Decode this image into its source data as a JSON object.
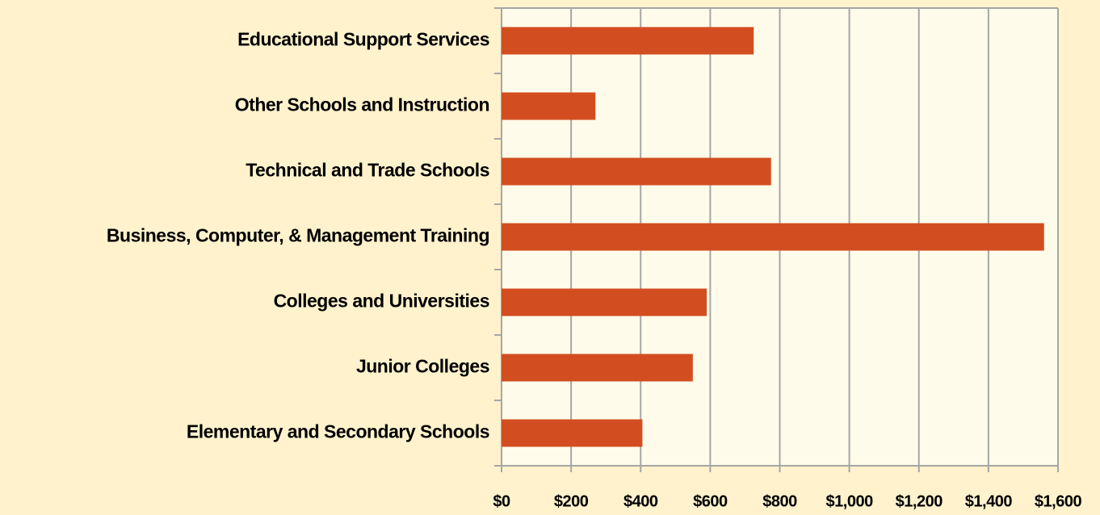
{
  "chart_data": {
    "type": "hbar",
    "categories": [
      "Educational Support Services",
      "Other Schools and Instruction",
      "Technical and Trade Schools",
      "Business, Computer, & Management Training",
      "Colleges and Universities",
      "Junior Colleges",
      "Elementary and Secondary Schools"
    ],
    "values": [
      725,
      270,
      775,
      1560,
      590,
      550,
      405
    ],
    "color": "#d24e20",
    "xlim": [
      0,
      1600
    ],
    "xticks": [
      {
        "value": 0,
        "label": "$0"
      },
      {
        "value": 200,
        "label": "$200"
      },
      {
        "value": 400,
        "label": "$400"
      },
      {
        "value": 600,
        "label": "$600"
      },
      {
        "value": 800,
        "label": "$800"
      },
      {
        "value": 1000,
        "label": "$1,000"
      },
      {
        "value": 1200,
        "label": "$1,200"
      },
      {
        "value": 1400,
        "label": "$1,400"
      },
      {
        "value": 1600,
        "label": "$1,600"
      }
    ],
    "grid": true
  }
}
